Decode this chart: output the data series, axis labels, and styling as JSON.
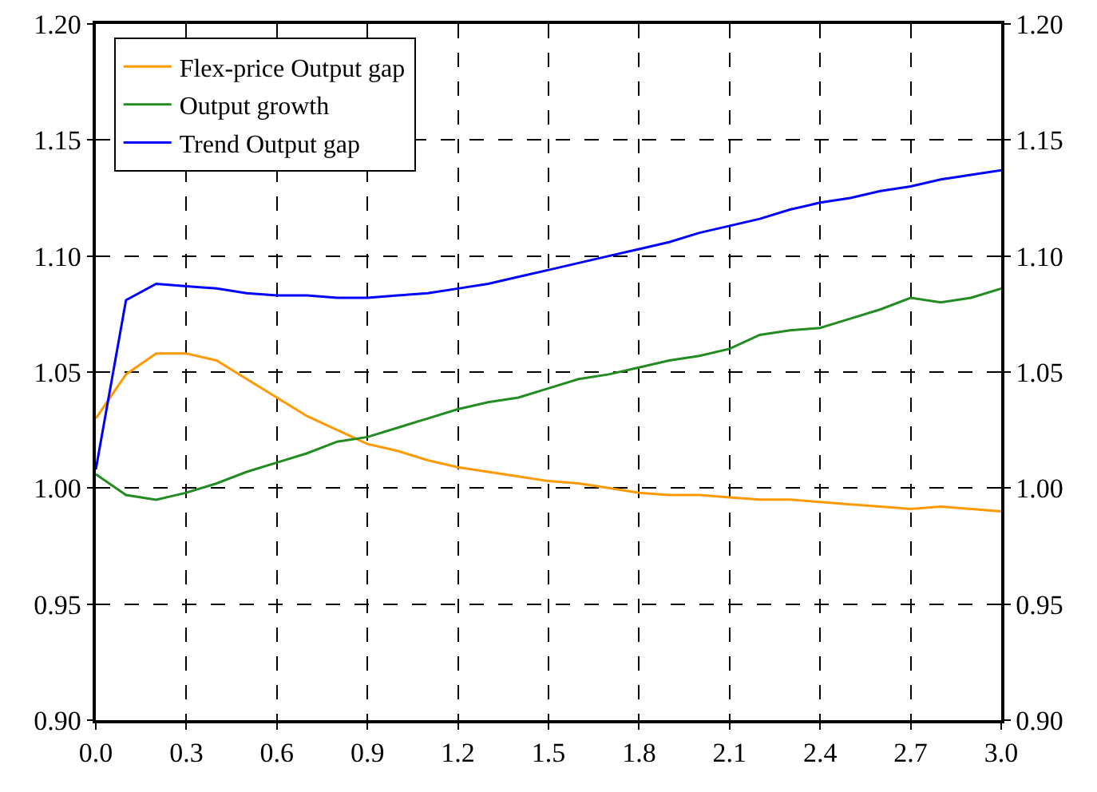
{
  "chart_data": {
    "type": "line",
    "x": [
      0,
      0.1,
      0.2,
      0.3,
      0.4,
      0.5,
      0.6,
      0.7,
      0.8,
      0.9,
      1.0,
      1.1,
      1.2,
      1.3,
      1.4,
      1.5,
      1.6,
      1.7,
      1.8,
      1.9,
      2.0,
      2.1,
      2.2,
      2.3,
      2.4,
      2.5,
      2.6,
      2.7,
      2.8,
      2.9,
      3.0
    ],
    "series": [
      {
        "name": "Flex-price Output gap",
        "color": "#ff9900",
        "values": [
          1.03,
          1.049,
          1.058,
          1.058,
          1.055,
          1.047,
          1.039,
          1.031,
          1.025,
          1.019,
          1.016,
          1.012,
          1.009,
          1.007,
          1.005,
          1.003,
          1.002,
          1.0,
          0.998,
          0.997,
          0.997,
          0.996,
          0.995,
          0.995,
          0.994,
          0.993,
          0.992,
          0.991,
          0.992,
          0.991,
          0.99
        ]
      },
      {
        "name": "Output growth",
        "color": "#228b22",
        "values": [
          1.006,
          0.997,
          0.995,
          0.998,
          1.002,
          1.007,
          1.011,
          1.015,
          1.02,
          1.022,
          1.026,
          1.03,
          1.034,
          1.037,
          1.039,
          1.043,
          1.047,
          1.049,
          1.052,
          1.055,
          1.057,
          1.06,
          1.066,
          1.068,
          1.069,
          1.073,
          1.077,
          1.082,
          1.08,
          1.082,
          1.086
        ]
      },
      {
        "name": "Trend Output gap",
        "color": "#0000ff",
        "values": [
          1.008,
          1.081,
          1.088,
          1.087,
          1.086,
          1.084,
          1.083,
          1.083,
          1.082,
          1.082,
          1.083,
          1.084,
          1.086,
          1.088,
          1.091,
          1.094,
          1.097,
          1.1,
          1.103,
          1.106,
          1.11,
          1.113,
          1.116,
          1.12,
          1.123,
          1.125,
          1.128,
          1.13,
          1.133,
          1.135,
          1.137
        ]
      }
    ],
    "xlim": [
      0,
      3.0
    ],
    "xticks": [
      {
        "value": 0,
        "label": "0.0"
      },
      0.3,
      0.6,
      0.9,
      1.2,
      1.5,
      1.8,
      2.1,
      2.4,
      2.7,
      {
        "value": 3,
        "label": "3.0"
      }
    ],
    "ylim": [
      0.9,
      1.2
    ],
    "yticks": [
      {
        "value": 0.9,
        "label": "0.90"
      },
      {
        "value": 0.95,
        "label": "0.95"
      },
      {
        "value": 1,
        "label": "1.00"
      },
      {
        "value": 1.05,
        "label": "1.05"
      },
      {
        "value": 1.1,
        "label": "1.10"
      },
      {
        "value": 1.15,
        "label": "1.15"
      },
      {
        "value": 1.2,
        "label": "1.20"
      }
    ],
    "y2lim": [
      0.9,
      1.2
    ],
    "y2ticks": [
      {
        "value": 0.9,
        "label": "0.90"
      },
      {
        "value": 0.95,
        "label": "0.95"
      },
      {
        "value": 1,
        "label": "1.00"
      },
      {
        "value": 1.05,
        "label": "1.05"
      },
      {
        "value": 1.1,
        "label": "1.10"
      },
      {
        "value": 1.15,
        "label": "1.15"
      },
      {
        "value": 1.2,
        "label": "1.20"
      }
    ],
    "grid": true,
    "legend": "top left",
    "marker": "none",
    "line_style": "solid"
  }
}
